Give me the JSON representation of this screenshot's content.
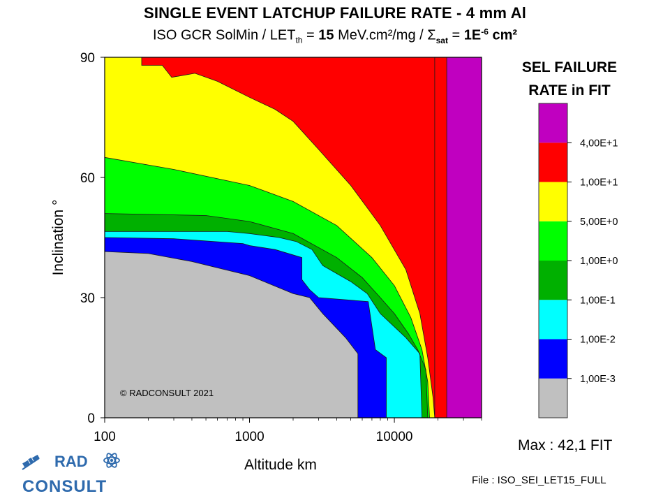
{
  "title": "SINGLE EVENT LATCHUP FAILURE RATE - 4 mm Al",
  "subtitle": {
    "part1": "ISO GCR SolMin / LET",
    "let_sub": "th",
    "part2": " = ",
    "let_value": "15",
    "part3": " MeV.cm²/mg / Σ",
    "sigma_sub": "sat",
    "part4": " = ",
    "sigma_value": "1E",
    "sigma_exp": "-6",
    "sigma_unit": " cm²"
  },
  "chart_data": {
    "type": "contour",
    "title": "SINGLE EVENT LATCHUP FAILURE RATE - 4 mm Al",
    "xlabel": "Altitude km",
    "ylabel": "Inclination °",
    "x_scale": "log",
    "xlim": [
      100,
      40000
    ],
    "ylim": [
      0,
      90
    ],
    "x_ticks": [
      "100",
      "1000",
      "10000"
    ],
    "y_ticks": [
      "0",
      "30",
      "60",
      "90"
    ],
    "copyright": "© RADCONSULT 2021",
    "levels": [
      {
        "color": "#c0c0c0",
        "min": 0,
        "max": 0.001
      },
      {
        "color": "#0000ff",
        "min": 0.001,
        "max": 0.01
      },
      {
        "color": "#00ffff",
        "min": 0.01,
        "max": 0.1
      },
      {
        "color": "#00b000",
        "min": 0.1,
        "max": 1
      },
      {
        "color": "#00ff00",
        "min": 1,
        "max": 5
      },
      {
        "color": "#ffff00",
        "min": 5,
        "max": 10
      },
      {
        "color": "#ff0000",
        "min": 10,
        "max": 40
      },
      {
        "color": "#c000c0",
        "min": 40,
        "max": 42.1
      }
    ],
    "contour_boundaries": [
      {
        "upper_edge_of": "gray",
        "points": [
          [
            100,
            41.5
          ],
          [
            200,
            41
          ],
          [
            400,
            39
          ],
          [
            1000,
            35.5
          ],
          [
            2000,
            31
          ],
          [
            2600,
            30
          ],
          [
            3200,
            26
          ],
          [
            4600,
            20
          ],
          [
            5600,
            16
          ],
          [
            5600,
            0
          ]
        ]
      },
      {
        "upper_edge_of": "blue",
        "points": [
          [
            100,
            45
          ],
          [
            300,
            44.7
          ],
          [
            900,
            43.5
          ],
          [
            1000,
            43
          ],
          [
            1500,
            42
          ],
          [
            2300,
            40
          ],
          [
            2300,
            34.5
          ],
          [
            2600,
            32
          ],
          [
            3000,
            30
          ],
          [
            6600,
            29
          ],
          [
            7400,
            17
          ],
          [
            8800,
            15
          ],
          [
            8800,
            0
          ]
        ]
      },
      {
        "upper_edge_of": "cyan",
        "points": [
          [
            100,
            46.5
          ],
          [
            700,
            46.5
          ],
          [
            1000,
            46
          ],
          [
            1600,
            45
          ],
          [
            2100,
            44
          ],
          [
            2700,
            42
          ],
          [
            3200,
            38
          ],
          [
            4000,
            36
          ],
          [
            5000,
            34
          ],
          [
            6500,
            31
          ],
          [
            8000,
            26
          ],
          [
            9800,
            23
          ],
          [
            12000,
            20
          ],
          [
            15000,
            16
          ],
          [
            15500,
            0
          ]
        ]
      },
      {
        "upper_edge_of": "darkgreen",
        "points": [
          [
            100,
            51
          ],
          [
            500,
            50.5
          ],
          [
            1000,
            49
          ],
          [
            2000,
            46
          ],
          [
            4000,
            40
          ],
          [
            6000,
            35
          ],
          [
            8000,
            30
          ],
          [
            10000,
            26
          ],
          [
            12500,
            21
          ],
          [
            14500,
            17
          ],
          [
            16500,
            12
          ],
          [
            17000,
            0
          ]
        ]
      },
      {
        "upper_edge_of": "green",
        "points": [
          [
            100,
            65
          ],
          [
            300,
            62
          ],
          [
            1000,
            58
          ],
          [
            2000,
            54
          ],
          [
            4000,
            48
          ],
          [
            7000,
            40
          ],
          [
            10000,
            33
          ],
          [
            13000,
            25
          ],
          [
            15500,
            17
          ],
          [
            17000,
            9
          ],
          [
            17500,
            0
          ]
        ]
      },
      {
        "upper_edge_of": "yellow",
        "points": [
          [
            100,
            90
          ],
          [
            180,
            90
          ],
          [
            180,
            88
          ],
          [
            250,
            88
          ],
          [
            290,
            85
          ],
          [
            420,
            86
          ],
          [
            600,
            84
          ],
          [
            1000,
            80
          ],
          [
            1500,
            77
          ],
          [
            2000,
            74
          ],
          [
            3000,
            67
          ],
          [
            5000,
            58
          ],
          [
            8000,
            48
          ],
          [
            12000,
            37
          ],
          [
            15000,
            26
          ],
          [
            17000,
            15
          ],
          [
            18500,
            5
          ],
          [
            19000,
            0
          ]
        ]
      },
      {
        "upper_edge_of": "red",
        "points": [
          [
            19000,
            0
          ],
          [
            19000,
            90
          ]
        ]
      },
      {
        "upper_edge_of": "magenta",
        "points": [
          [
            23000,
            0
          ],
          [
            23000,
            90
          ]
        ]
      }
    ],
    "legend": {
      "title_line1": "SEL FAILURE",
      "title_line2": "RATE in FIT",
      "ticks": [
        "4,00E+1",
        "1,00E+1",
        "5,00E+0",
        "1,00E+0",
        "1,00E-1",
        "1,00E-2",
        "1,00E-3"
      ]
    },
    "max_value": 42.1
  },
  "max_text": "Max : 42,1  FIT",
  "file_text": "File : ISO_SEI_LET15_FULL",
  "logo": {
    "line1": "RAD",
    "line2": "CONSULT",
    "accent": "#2e6aad"
  }
}
